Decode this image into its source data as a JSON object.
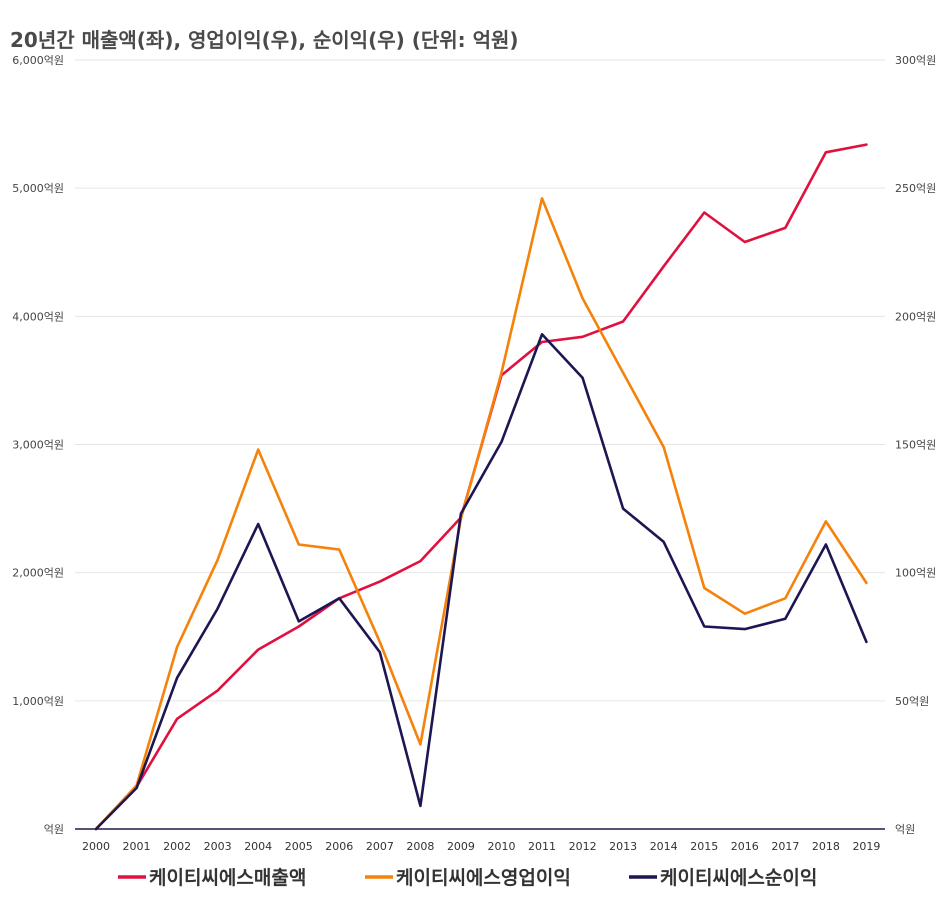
{
  "chart_data": {
    "type": "line",
    "title": "20년간 매출액(좌), 영업이익(우), 순이익(우) (단위: 억원)",
    "categories": [
      "2000",
      "2001",
      "2002",
      "2003",
      "2004",
      "2005",
      "2006",
      "2007",
      "2008",
      "2009",
      "2010",
      "2011",
      "2012",
      "2013",
      "2014",
      "2015",
      "2016",
      "2017",
      "2018",
      "2019"
    ],
    "y_left": {
      "min": 0,
      "max": 6000,
      "ticks": [
        0,
        1000,
        2000,
        3000,
        4000,
        5000,
        6000
      ],
      "tick_labels": [
        "억원",
        "1,000억원",
        "2,000억원",
        "3,000억원",
        "4,000억원",
        "5,000억원",
        "6,000억원"
      ]
    },
    "y_right": {
      "min": 0,
      "max": 300,
      "ticks": [
        0,
        50,
        100,
        150,
        200,
        250,
        300
      ],
      "tick_labels": [
        "억원",
        "50억원",
        "100억원",
        "150억원",
        "200억원",
        "250억원",
        "300억원"
      ]
    },
    "grid": true,
    "legend": "bottom",
    "series": [
      {
        "name": "케이티씨에스매출액",
        "axis": "left",
        "color": "#e0103f",
        "values": [
          0,
          330,
          860,
          1080,
          1400,
          1580,
          1800,
          1930,
          2090,
          2430,
          3540,
          3800,
          3840,
          3960,
          4390,
          4810,
          4580,
          4690,
          5280,
          5340
        ]
      },
      {
        "name": "케이티씨에스영업이익",
        "axis": "right",
        "color": "#f5820a",
        "values": [
          0,
          17,
          71,
          105,
          148,
          111,
          109,
          73,
          33,
          121,
          178,
          246,
          207,
          178,
          149,
          94,
          84,
          90,
          120,
          96
        ]
      },
      {
        "name": "케이티씨에스순이익",
        "axis": "right",
        "color": "#1c1752",
        "values": [
          0,
          16,
          59,
          86,
          119,
          81,
          90,
          69,
          9,
          123,
          151,
          193,
          176,
          125,
          112,
          79,
          78,
          82,
          111,
          73
        ]
      }
    ]
  }
}
